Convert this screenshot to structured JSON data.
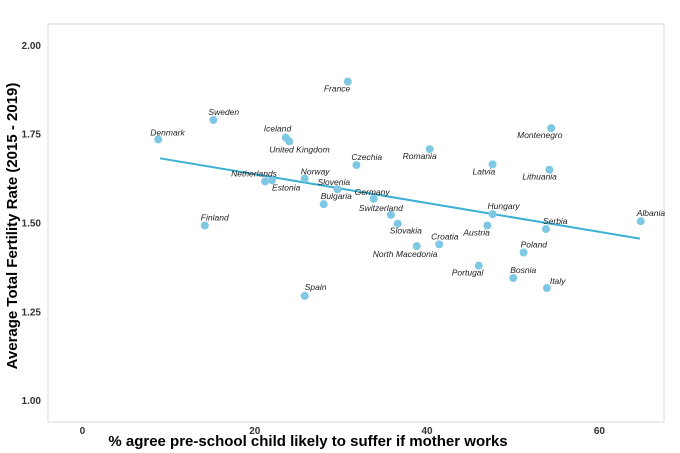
{
  "chart_data": {
    "type": "scatter",
    "xlabel": "% agree pre-school child likely to suffer if mother works",
    "ylabel": "Average Total Fertility Rate (2015 - 2019)",
    "xlim": [
      -4,
      67.5
    ],
    "ylim": [
      0.94,
      2.06
    ],
    "xticks": [
      0,
      20,
      40,
      60
    ],
    "yticks": [
      1.0,
      1.25,
      1.5,
      1.75,
      2.0
    ],
    "ytick_labels": [
      "1.00",
      "1.25",
      "1.50",
      "1.75",
      "2.00"
    ],
    "grid": false,
    "point_color": "#7ec8e3",
    "line_color": "#3bb0d4",
    "trend_line": {
      "x": [
        9,
        64.7
      ],
      "y": [
        1.682,
        1.456
      ]
    },
    "points": [
      {
        "name": "Denmark",
        "x": 8.8,
        "y": 1.735
      },
      {
        "name": "Sweden",
        "x": 15.2,
        "y": 1.79
      },
      {
        "name": "Finland",
        "x": 14.2,
        "y": 1.493
      },
      {
        "name": "Netherlands",
        "x": 21.2,
        "y": 1.617
      },
      {
        "name": "Estonia",
        "x": 22.0,
        "y": 1.62
      },
      {
        "name": "Iceland",
        "x": 23.6,
        "y": 1.74
      },
      {
        "name": "United Kingdom",
        "x": 24.0,
        "y": 1.73
      },
      {
        "name": "Norway",
        "x": 25.8,
        "y": 1.625
      },
      {
        "name": "Spain",
        "x": 25.8,
        "y": 1.295
      },
      {
        "name": "Bulgaria",
        "x": 28.0,
        "y": 1.553
      },
      {
        "name": "Slovenia",
        "x": 29.6,
        "y": 1.595
      },
      {
        "name": "France",
        "x": 30.8,
        "y": 1.898
      },
      {
        "name": "Czechia",
        "x": 31.8,
        "y": 1.663
      },
      {
        "name": "Germany",
        "x": 33.8,
        "y": 1.568
      },
      {
        "name": "Switzerland",
        "x": 35.8,
        "y": 1.523
      },
      {
        "name": "Slovakia",
        "x": 36.6,
        "y": 1.498
      },
      {
        "name": "North Macedonia",
        "x": 38.8,
        "y": 1.435
      },
      {
        "name": "Romania",
        "x": 40.3,
        "y": 1.708
      },
      {
        "name": "Croatia",
        "x": 41.4,
        "y": 1.44
      },
      {
        "name": "Latvia",
        "x": 47.6,
        "y": 1.665
      },
      {
        "name": "Portugal",
        "x": 46.0,
        "y": 1.38
      },
      {
        "name": "Austria",
        "x": 47.0,
        "y": 1.493
      },
      {
        "name": "Hungary",
        "x": 47.6,
        "y": 1.525
      },
      {
        "name": "Bosnia",
        "x": 50.0,
        "y": 1.345
      },
      {
        "name": "Poland",
        "x": 51.2,
        "y": 1.417
      },
      {
        "name": "Serbia",
        "x": 53.8,
        "y": 1.483
      },
      {
        "name": "Italy",
        "x": 53.9,
        "y": 1.317
      },
      {
        "name": "Lithuania",
        "x": 54.2,
        "y": 1.65
      },
      {
        "name": "Montenegro",
        "x": 54.4,
        "y": 1.767
      },
      {
        "name": "Albania",
        "x": 64.8,
        "y": 1.505
      }
    ]
  }
}
